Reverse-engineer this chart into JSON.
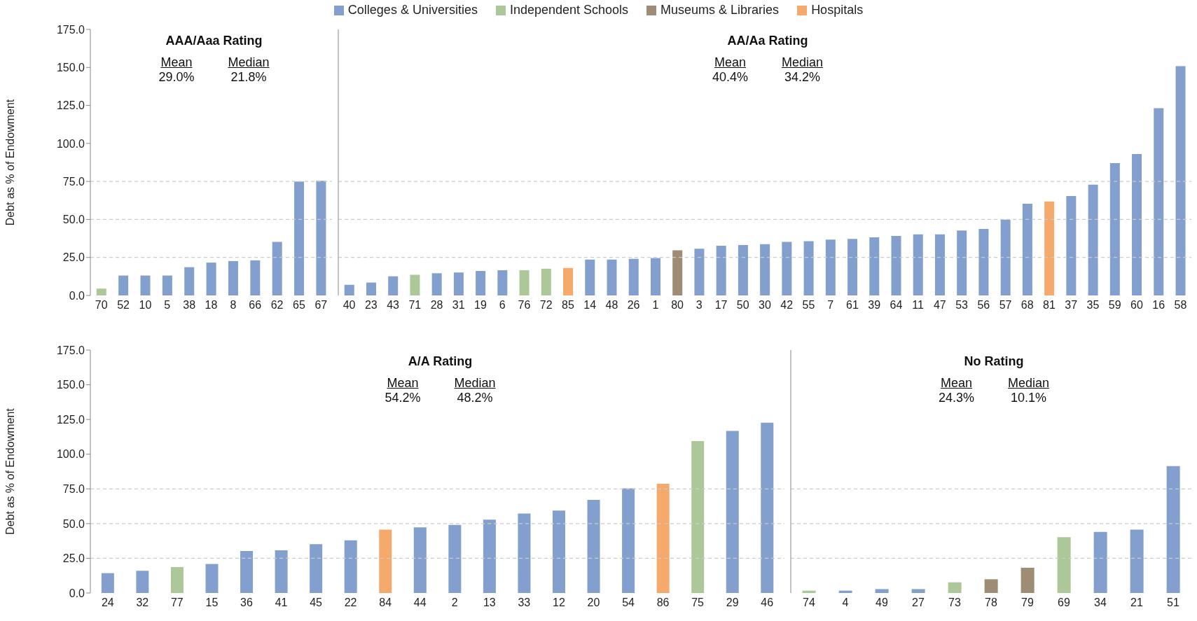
{
  "chart_data": [
    {
      "type": "bar",
      "title": "AAA/Aaa Rating",
      "ylabel": "Debt as % of Endowment",
      "annotations": [
        "Mean",
        "29.0%",
        "Median",
        "21.8%"
      ],
      "categories": [
        "70",
        "52",
        "10",
        "5",
        "38",
        "18",
        "8",
        "66",
        "62",
        "65",
        "67"
      ],
      "stacked": true,
      "legend": "top",
      "series": [
        {
          "name": "Colleges & Universities",
          "color": "#829fcd",
          "values": [
            null,
            13.1,
            13.1,
            13.1,
            18.6,
            21.6,
            22.6,
            23.1,
            35.2,
            74.9,
            75.4
          ]
        },
        {
          "name": "Independent Schools",
          "color": "#adc898",
          "values": [
            4.5,
            null,
            null,
            null,
            null,
            null,
            null,
            null,
            null,
            null,
            null
          ]
        },
        {
          "name": "Museums & Libraries",
          "color": "#9e8c74",
          "values": [
            null,
            null,
            null,
            null,
            null,
            null,
            null,
            null,
            null,
            null,
            null
          ]
        },
        {
          "name": "Hospitals",
          "color": "#f5a96b",
          "values": [
            null,
            null,
            null,
            null,
            null,
            null,
            null,
            null,
            null,
            null,
            null
          ]
        }
      ],
      "ylim": [
        0,
        175
      ],
      "yticks": [
        {
          "value": 0,
          "label": "0.0"
        },
        {
          "value": 25,
          "label": "25.0"
        },
        {
          "value": 50,
          "label": "50.0"
        },
        {
          "value": 75,
          "label": "75.0"
        },
        {
          "value": 100,
          "label": "100.0"
        },
        {
          "value": 125,
          "label": "125.0"
        },
        {
          "value": 150,
          "label": "150.0"
        },
        {
          "value": 175,
          "label": "175.0"
        }
      ],
      "ref_lines": [
        {
          "axis": "y",
          "value": 25,
          "color": "#cccccc",
          "line_style": "dashed"
        },
        {
          "axis": "y",
          "value": 50,
          "color": "#cccccc",
          "line_style": "dashed"
        },
        {
          "axis": "y",
          "value": 75,
          "color": "#cccccc",
          "line_style": "dashed"
        }
      ]
    },
    {
      "type": "bar",
      "title": "AA/Aa Rating",
      "annotations": [
        "Mean",
        "40.4%",
        "Median",
        "34.2%"
      ],
      "categories": [
        "40",
        "23",
        "43",
        "71",
        "28",
        "31",
        "19",
        "6",
        "76",
        "72",
        "85",
        "14",
        "48",
        "26",
        "1",
        "80",
        "3",
        "17",
        "50",
        "30",
        "42",
        "55",
        "7",
        "61",
        "39",
        "64",
        "11",
        "47",
        "53",
        "56",
        "57",
        "68",
        "81",
        "37",
        "35",
        "59",
        "60",
        "16",
        "58"
      ],
      "values": [
        7.0,
        8.5,
        12.6,
        13.6,
        14.6,
        15.1,
        16.1,
        16.6,
        16.6,
        17.6,
        18.1,
        23.6,
        23.6,
        24.1,
        24.6,
        29.7,
        30.7,
        32.7,
        33.2,
        33.7,
        35.2,
        35.7,
        36.7,
        37.2,
        38.2,
        39.2,
        40.2,
        40.2,
        42.7,
        43.7,
        49.8,
        60.3,
        61.8,
        65.4,
        72.9,
        87,
        93,
        123.2,
        150.8
      ],
      "colors": [
        "#829fcd",
        "#829fcd",
        "#829fcd",
        "#adc898",
        "#829fcd",
        "#829fcd",
        "#829fcd",
        "#829fcd",
        "#adc898",
        "#adc898",
        "#f5a96b",
        "#829fcd",
        "#829fcd",
        "#829fcd",
        "#829fcd",
        "#9e8c74",
        "#829fcd",
        "#829fcd",
        "#829fcd",
        "#829fcd",
        "#829fcd",
        "#829fcd",
        "#829fcd",
        "#829fcd",
        "#829fcd",
        "#829fcd",
        "#829fcd",
        "#829fcd",
        "#829fcd",
        "#829fcd",
        "#829fcd",
        "#829fcd",
        "#f5a96b",
        "#829fcd",
        "#829fcd",
        "#829fcd",
        "#829fcd",
        "#829fcd",
        "#829fcd"
      ],
      "ylim": [
        0,
        175
      ],
      "tick_labels": "x",
      "ref_lines": [
        {
          "axis": "y",
          "value": 25,
          "color": "#cccccc",
          "line_style": "dashed"
        },
        {
          "axis": "y",
          "value": 50,
          "color": "#cccccc",
          "line_style": "dashed"
        },
        {
          "axis": "y",
          "value": 75,
          "color": "#cccccc",
          "line_style": "dashed"
        }
      ]
    },
    {
      "type": "bar",
      "title": "A/A Rating",
      "ylabel": "Debt as % of Endowment",
      "annotations": [
        "Mean",
        "54.2%",
        "Median",
        "48.2%"
      ],
      "categories": [
        "24",
        "32",
        "77",
        "15",
        "36",
        "41",
        "45",
        "22",
        "84",
        "44",
        "2",
        "13",
        "33",
        "12",
        "20",
        "54",
        "86",
        "75",
        "29",
        "46"
      ],
      "values": [
        14.3,
        16.0,
        18.7,
        20.9,
        30.3,
        30.8,
        35.2,
        38.0,
        45.7,
        47.3,
        49.0,
        52.8,
        57.2,
        59.4,
        67.1,
        75.4,
        78.7,
        109.5,
        116.7,
        122.7
      ],
      "colors": [
        "#829fcd",
        "#829fcd",
        "#adc898",
        "#829fcd",
        "#829fcd",
        "#829fcd",
        "#829fcd",
        "#829fcd",
        "#f5a96b",
        "#829fcd",
        "#829fcd",
        "#829fcd",
        "#829fcd",
        "#829fcd",
        "#829fcd",
        "#829fcd",
        "#f5a96b",
        "#adc898",
        "#829fcd",
        "#829fcd"
      ],
      "ylim": [
        0,
        175
      ],
      "yticks": [
        {
          "value": 0,
          "label": "0.0"
        },
        {
          "value": 25,
          "label": "25.0"
        },
        {
          "value": 50,
          "label": "50.0"
        },
        {
          "value": 75,
          "label": "75.0"
        },
        {
          "value": 100,
          "label": "100.0"
        },
        {
          "value": 125,
          "label": "125.0"
        },
        {
          "value": 150,
          "label": "150.0"
        },
        {
          "value": 175,
          "label": "175.0"
        }
      ],
      "ref_lines": [
        {
          "axis": "y",
          "value": 25,
          "color": "#cccccc",
          "line_style": "dashed"
        },
        {
          "axis": "y",
          "value": 50,
          "color": "#cccccc",
          "line_style": "dashed"
        },
        {
          "axis": "y",
          "value": 75,
          "color": "#cccccc",
          "line_style": "dashed"
        }
      ]
    },
    {
      "type": "bar",
      "title": "No Rating",
      "annotations": [
        "Mean",
        "24.3%",
        "Median",
        "10.1%"
      ],
      "categories": [
        "74",
        "4",
        "49",
        "27",
        "73",
        "78",
        "79",
        "69",
        "34",
        "21",
        "51"
      ],
      "values": [
        1.7,
        1.7,
        2.8,
        2.8,
        7.7,
        9.9,
        18.2,
        40.2,
        44.0,
        45.7,
        91.4
      ],
      "colors": [
        "#adc898",
        "#829fcd",
        "#829fcd",
        "#829fcd",
        "#adc898",
        "#9e8c74",
        "#9e8c74",
        "#adc898",
        "#829fcd",
        "#829fcd",
        "#829fcd"
      ],
      "ylim": [
        0,
        175
      ],
      "tick_labels": "x",
      "ref_lines": [
        {
          "axis": "y",
          "value": 25,
          "color": "#cccccc",
          "line_style": "dashed"
        },
        {
          "axis": "y",
          "value": 50,
          "color": "#cccccc",
          "line_style": "dashed"
        },
        {
          "axis": "y",
          "value": 75,
          "color": "#cccccc",
          "line_style": "dashed"
        }
      ]
    }
  ]
}
